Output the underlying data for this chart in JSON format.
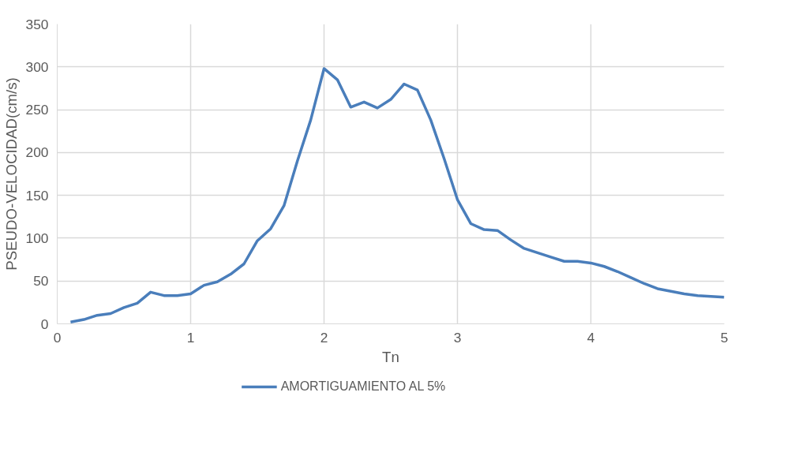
{
  "chart_data": {
    "type": "line",
    "xlabel": "Tn",
    "ylabel": "PSEUDO-VELOCIDAD(cm/s)",
    "x": [
      0.1,
      0.2,
      0.3,
      0.4,
      0.5,
      0.6,
      0.7,
      0.8,
      0.9,
      1.0,
      1.1,
      1.2,
      1.3,
      1.4,
      1.5,
      1.6,
      1.7,
      1.8,
      1.9,
      2.0,
      2.1,
      2.2,
      2.3,
      2.4,
      2.5,
      2.6,
      2.7,
      2.8,
      2.9,
      3.0,
      3.1,
      3.2,
      3.3,
      3.4,
      3.5,
      3.6,
      3.7,
      3.8,
      3.9,
      4.0,
      4.1,
      4.2,
      4.3,
      4.4,
      4.5,
      4.6,
      4.7,
      4.8,
      4.9,
      5.0
    ],
    "series": [
      {
        "name": "AMORTIGUAMIENTO AL 5%",
        "color": "#4a7ebb",
        "values": [
          2,
          5,
          10,
          12,
          19,
          24,
          37,
          33,
          33,
          35,
          45,
          49,
          58,
          70,
          97,
          111,
          138,
          190,
          238,
          298,
          285,
          253,
          259,
          252,
          262,
          280,
          273,
          238,
          193,
          145,
          117,
          110,
          109,
          98,
          88,
          83,
          78,
          73,
          73,
          71,
          67,
          61,
          54,
          47,
          41,
          38,
          35,
          33,
          32,
          31
        ]
      }
    ],
    "xlim": [
      0,
      5
    ],
    "xticks": [
      0,
      1,
      2,
      3,
      4,
      5
    ],
    "ylim": [
      0,
      350
    ],
    "yticks": [
      0,
      50,
      100,
      150,
      200,
      250,
      300,
      350
    ],
    "grid": true,
    "legend": "bottom",
    "marker": "none",
    "line_style": "solid"
  }
}
